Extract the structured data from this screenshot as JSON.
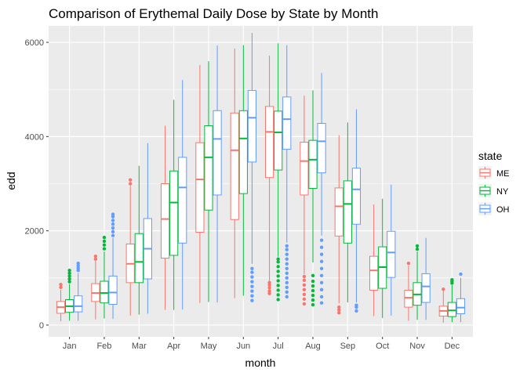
{
  "chart_data": {
    "type": "boxplot",
    "title": "Comparison of Erythemal Daily Dose by State by Month",
    "xlabel": "month",
    "ylabel": "edd",
    "ylim": [
      -250,
      6350
    ],
    "yticks": [
      0,
      2000,
      4000,
      6000
    ],
    "grid": true,
    "legend_position": "right",
    "legend_title": "state",
    "categories": [
      "Jan",
      "Feb",
      "Mar",
      "Apr",
      "May",
      "Jun",
      "Jul",
      "Aug",
      "Sep",
      "Oct",
      "Nov",
      "Dec"
    ],
    "series": [
      {
        "name": "ME",
        "color": "#F8766D",
        "boxes": [
          {
            "min": 80,
            "q1": 250,
            "median": 380,
            "q3": 500,
            "max": 750,
            "outliers": [
              800,
              860
            ]
          },
          {
            "min": 120,
            "q1": 500,
            "median": 680,
            "q3": 880,
            "max": 1360,
            "outliers": [
              1400,
              1460
            ]
          },
          {
            "min": 200,
            "q1": 900,
            "median": 1300,
            "q3": 1720,
            "max": 2950,
            "outliers": [
              3000,
              3080
            ]
          },
          {
            "min": 320,
            "q1": 1420,
            "median": 2250,
            "q3": 3000,
            "max": 4230,
            "outliers": []
          },
          {
            "min": 470,
            "q1": 1970,
            "median": 3090,
            "q3": 3870,
            "max": 5520,
            "outliers": []
          },
          {
            "min": 570,
            "q1": 2240,
            "median": 3710,
            "q3": 4500,
            "max": 5870,
            "outliers": []
          },
          {
            "min": 930,
            "q1": 3130,
            "median": 4100,
            "q3": 4640,
            "max": 5720,
            "outliers": [
              670,
              720,
              790,
              850,
              900
            ]
          },
          {
            "min": 1080,
            "q1": 2760,
            "median": 3480,
            "q3": 3880,
            "max": 4870,
            "outliers": [
              450,
              550,
              650,
              750,
              850,
              950,
              1030
            ]
          },
          {
            "min": 460,
            "q1": 1890,
            "median": 2520,
            "q3": 2910,
            "max": 4030,
            "outliers": [
              260,
              320,
              380
            ]
          },
          {
            "min": 190,
            "q1": 740,
            "median": 1160,
            "q3": 1460,
            "max": 2560,
            "outliers": []
          },
          {
            "min": 90,
            "q1": 380,
            "median": 580,
            "q3": 740,
            "max": 1260,
            "outliers": [
              1310
            ]
          },
          {
            "min": 50,
            "q1": 190,
            "median": 300,
            "q3": 400,
            "max": 720,
            "outliers": [
              760
            ]
          }
        ]
      },
      {
        "name": "NY",
        "color": "#00BA38",
        "boxes": [
          {
            "min": 90,
            "q1": 270,
            "median": 400,
            "q3": 540,
            "max": 870,
            "outliers": [
              920,
              980,
              1040,
              1100,
              1160
            ]
          },
          {
            "min": 140,
            "q1": 470,
            "median": 680,
            "q3": 930,
            "max": 1560,
            "outliers": [
              1620,
              1700,
              1780,
              1860
            ]
          },
          {
            "min": 220,
            "q1": 900,
            "median": 1340,
            "q3": 1940,
            "max": 3380,
            "outliers": []
          },
          {
            "min": 320,
            "q1": 1480,
            "median": 2600,
            "q3": 3270,
            "max": 4780,
            "outliers": []
          },
          {
            "min": 490,
            "q1": 2440,
            "median": 3560,
            "q3": 4230,
            "max": 5600,
            "outliers": []
          },
          {
            "min": 620,
            "q1": 2790,
            "median": 3960,
            "q3": 4550,
            "max": 5940,
            "outliers": []
          },
          {
            "min": 1450,
            "q1": 3290,
            "median": 4090,
            "q3": 4540,
            "max": 5980,
            "outliers": [
              540,
              640,
              740,
              840,
              940,
              1040,
              1140,
              1240,
              1340,
              1400
            ]
          },
          {
            "min": 1330,
            "q1": 2900,
            "median": 3510,
            "q3": 3920,
            "max": 4980,
            "outliers": [
              430,
              530,
              630,
              730,
              830,
              930,
              1050
            ]
          },
          {
            "min": 480,
            "q1": 1740,
            "median": 2570,
            "q3": 3060,
            "max": 4300,
            "outliers": []
          },
          {
            "min": 150,
            "q1": 780,
            "median": 1230,
            "q3": 1660,
            "max": 2680,
            "outliers": []
          },
          {
            "min": 110,
            "q1": 420,
            "median": 650,
            "q3": 900,
            "max": 1560,
            "outliers": [
              1610,
              1680
            ]
          },
          {
            "min": 60,
            "q1": 180,
            "median": 310,
            "q3": 480,
            "max": 850,
            "outliers": [
              890,
              930,
              960
            ]
          }
        ]
      },
      {
        "name": "OH",
        "color": "#619CFF",
        "boxes": [
          {
            "min": 90,
            "q1": 280,
            "median": 400,
            "q3": 620,
            "max": 1100,
            "outliers": [
              1160,
              1210,
              1260,
              1310
            ]
          },
          {
            "min": 130,
            "q1": 440,
            "median": 690,
            "q3": 1040,
            "max": 1850,
            "outliers": [
              1900,
              1980,
              2060,
              2140,
              2220,
              2300,
              2350
            ]
          },
          {
            "min": 240,
            "q1": 980,
            "median": 1620,
            "q3": 2260,
            "max": 3860,
            "outliers": []
          },
          {
            "min": 330,
            "q1": 1740,
            "median": 2920,
            "q3": 3560,
            "max": 5200,
            "outliers": []
          },
          {
            "min": 480,
            "q1": 2760,
            "median": 3950,
            "q3": 4550,
            "max": 5930,
            "outliers": []
          },
          {
            "min": 1300,
            "q1": 3460,
            "median": 4400,
            "q3": 4980,
            "max": 6200,
            "outliers": [
              520,
              620,
              720,
              820,
              920,
              1020,
              1120,
              1200
            ]
          },
          {
            "min": 1750,
            "q1": 3730,
            "median": 4370,
            "q3": 4840,
            "max": 5940,
            "outliers": [
              600,
              700,
              800,
              900,
              1000,
              1100,
              1200,
              1300,
              1400,
              1500,
              1600,
              1680
            ]
          },
          {
            "min": 1900,
            "q1": 3230,
            "median": 3900,
            "q3": 4280,
            "max": 5350,
            "outliers": [
              470,
              600,
              750,
              900,
              1050,
              1200,
              1350,
              1500,
              1650,
              1800
            ]
          },
          {
            "min": 480,
            "q1": 2140,
            "median": 2880,
            "q3": 3330,
            "max": 4580,
            "outliers": [
              300,
              380,
              420
            ]
          },
          {
            "min": 200,
            "q1": 1010,
            "median": 1540,
            "q3": 1990,
            "max": 2980,
            "outliers": []
          },
          {
            "min": 110,
            "q1": 480,
            "median": 820,
            "q3": 1090,
            "max": 1850,
            "outliers": []
          },
          {
            "min": 60,
            "q1": 240,
            "median": 370,
            "q3": 560,
            "max": 1000,
            "outliers": [
              1080
            ]
          }
        ]
      }
    ]
  }
}
